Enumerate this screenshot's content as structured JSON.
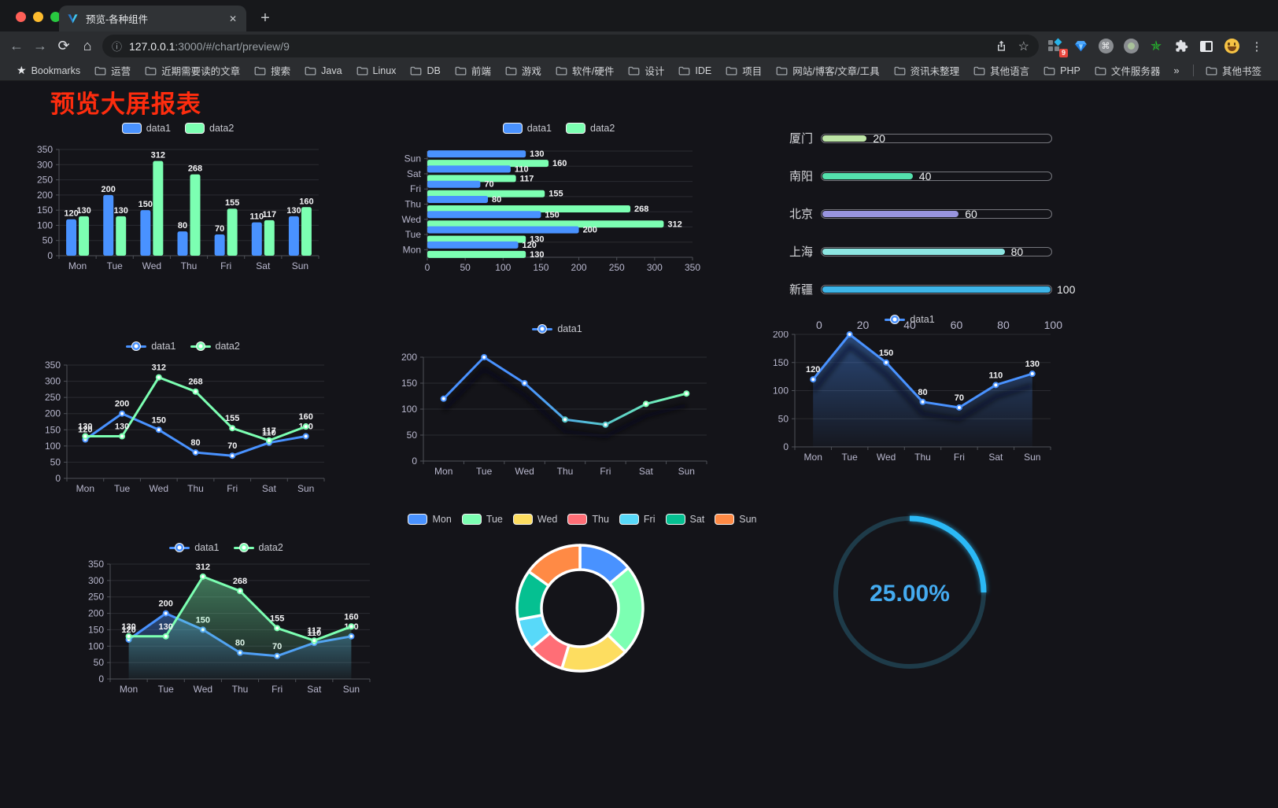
{
  "browser": {
    "tab_title": "预览-各种组件",
    "url_host": "127.0.0.1",
    "url_rest": ":3000/#/chart/preview/9",
    "bookmarks_label": "Bookmarks",
    "bookmarks": [
      "运营",
      "近期需要读的文章",
      "搜索",
      "Java",
      "Linux",
      "DB",
      "前端",
      "游戏",
      "软件/硬件",
      "设计",
      "IDE",
      "项目",
      "网站/博客/文章/工具",
      "资讯未整理",
      "其他语言",
      "PHP",
      "文件服务器"
    ],
    "overflow_chevron": "»",
    "other_bookmarks": "其他书签",
    "extension_badge": "9",
    "icons": {
      "back": "←",
      "forward": "→",
      "reload": "⟳",
      "home": "⌂",
      "info": "ⓘ",
      "star": "☆",
      "plus": "+",
      "close": "✕",
      "kebab": "⋮",
      "cmd": "⌘",
      "bookmarks_star": "★"
    }
  },
  "page": {
    "title": "预览大屏报表",
    "title_color": "#fd2c0e",
    "background": "#141419"
  },
  "chart_data": [
    {
      "id": "bar-grouped",
      "type": "bar",
      "categories": [
        "Mon",
        "Tue",
        "Wed",
        "Thu",
        "Fri",
        "Sat",
        "Sun"
      ],
      "series": [
        {
          "name": "data1",
          "color": "#4992ff",
          "values": [
            120,
            200,
            150,
            80,
            70,
            110,
            130
          ],
          "labels": true
        },
        {
          "name": "data2",
          "color": "#7cffb2",
          "values": [
            130,
            130,
            312,
            268,
            155,
            117,
            160
          ],
          "labels": true
        }
      ],
      "ylim": [
        0,
        350
      ],
      "ytick_step": 50,
      "grid": true,
      "legend_position": "top"
    },
    {
      "id": "bar-horizontal",
      "type": "bar-horizontal",
      "categories": [
        "Mon",
        "Tue",
        "Wed",
        "Thu",
        "Fri",
        "Sat",
        "Sun"
      ],
      "series": [
        {
          "name": "data1",
          "color": "#4992ff",
          "values": [
            120,
            200,
            150,
            80,
            70,
            110,
            130
          ],
          "labels": true
        },
        {
          "name": "data2",
          "color": "#7cffb2",
          "values": [
            130,
            130,
            312,
            268,
            155,
            117,
            160
          ],
          "labels": true
        }
      ],
      "xlim": [
        0,
        350
      ],
      "xtick_step": 50,
      "grid": true,
      "legend_position": "top"
    },
    {
      "id": "city-progress",
      "type": "progress-bars",
      "max": 100,
      "xticks": [
        0,
        20,
        40,
        60,
        80,
        100
      ],
      "items": [
        {
          "label": "厦门",
          "value": 20,
          "color": "#bde5a6"
        },
        {
          "label": "南阳",
          "value": 40,
          "color": "#54e1ad"
        },
        {
          "label": "北京",
          "value": 60,
          "color": "#9894de"
        },
        {
          "label": "上海",
          "value": 80,
          "color": "#8de6e2"
        },
        {
          "label": "新疆",
          "value": 100,
          "color": "#3db5e8"
        }
      ]
    },
    {
      "id": "line-two",
      "type": "line",
      "categories": [
        "Mon",
        "Tue",
        "Wed",
        "Thu",
        "Fri",
        "Sat",
        "Sun"
      ],
      "series": [
        {
          "name": "data1",
          "color": "#4992ff",
          "values": [
            120,
            200,
            150,
            80,
            70,
            110,
            130
          ],
          "labels": true
        },
        {
          "name": "data2",
          "color": "#7cffb2",
          "values": [
            130,
            130,
            312,
            268,
            155,
            117,
            160
          ],
          "labels": true
        }
      ],
      "ylim": [
        0,
        350
      ],
      "ytick_step": 50,
      "grid": true,
      "legend_position": "top"
    },
    {
      "id": "line-gradient",
      "type": "line",
      "categories": [
        "Mon",
        "Tue",
        "Wed",
        "Thu",
        "Fri",
        "Sat",
        "Sun"
      ],
      "series": [
        {
          "name": "data1",
          "color": "#4992ff",
          "gradient": [
            "#4992ff",
            "#4992ff",
            "#57c8cc",
            "#7cffb2"
          ],
          "values": [
            120,
            200,
            150,
            80,
            70,
            110,
            130
          ],
          "labels": false
        }
      ],
      "ylim": [
        0,
        200
      ],
      "ytick_step": 50,
      "grid": true,
      "shadow": true,
      "legend_position": "top"
    },
    {
      "id": "area-single",
      "type": "line",
      "categories": [
        "Mon",
        "Tue",
        "Wed",
        "Thu",
        "Fri",
        "Sat",
        "Sun"
      ],
      "series": [
        {
          "name": "data1",
          "color": "#4992ff",
          "values": [
            120,
            200,
            150,
            80,
            70,
            110,
            130
          ],
          "labels": true,
          "area": true
        }
      ],
      "ylim": [
        0,
        200
      ],
      "ytick_step": 50,
      "grid": true,
      "shadow": true,
      "legend_position": "top"
    },
    {
      "id": "area-two",
      "type": "line",
      "categories": [
        "Mon",
        "Tue",
        "Wed",
        "Thu",
        "Fri",
        "Sat",
        "Sun"
      ],
      "series": [
        {
          "name": "data1",
          "color": "#4992ff",
          "values": [
            120,
            200,
            150,
            80,
            70,
            110,
            130
          ],
          "labels": true,
          "area": true
        },
        {
          "name": "data2",
          "color": "#7cffb2",
          "values": [
            130,
            130,
            312,
            268,
            155,
            117,
            160
          ],
          "labels": true,
          "area": true
        }
      ],
      "ylim": [
        0,
        350
      ],
      "ytick_step": 50,
      "grid": true,
      "legend_position": "top"
    },
    {
      "id": "donut",
      "type": "pie",
      "categories": [
        "Mon",
        "Tue",
        "Wed",
        "Thu",
        "Fri",
        "Sat",
        "Sun"
      ],
      "values": [
        120,
        200,
        150,
        80,
        70,
        110,
        130
      ],
      "colors": [
        "#4992ff",
        "#7cffb2",
        "#fddd60",
        "#ff6e76",
        "#58d9f9",
        "#05c091",
        "#ff8a45"
      ],
      "legend_position": "top"
    },
    {
      "id": "gauge",
      "type": "gauge",
      "value": 25,
      "label": "25.00%",
      "color": "#2bb9f6",
      "track_color": "#1e3b49"
    }
  ]
}
